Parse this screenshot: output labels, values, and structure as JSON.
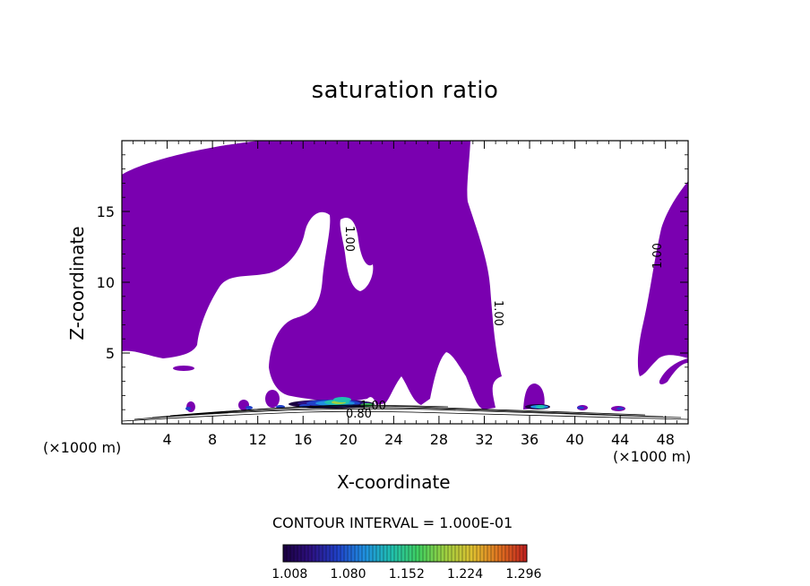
{
  "chart_data": {
    "type": "contour",
    "title": "saturation ratio",
    "xlabel": "X-coordinate",
    "ylabel": "Z-coordinate",
    "x_unit_label": "(×1000 m)",
    "x_ticks": [
      4,
      8,
      12,
      16,
      20,
      24,
      28,
      32,
      36,
      40,
      44,
      48
    ],
    "y_ticks": [
      5,
      10,
      15
    ],
    "xlim": [
      0,
      50
    ],
    "ylim": [
      0,
      20
    ],
    "contour_interval_label": "CONTOUR INTERVAL = 1.000E-01",
    "contour_labels": [
      "1.00",
      "1.00",
      "1.00",
      "0.80",
      "1.00"
    ],
    "fill_color": "#7a00b0",
    "colorbar": {
      "ticks": [
        "1.008",
        "1.080",
        "1.152",
        "1.224",
        "1.296"
      ],
      "range": [
        1.0,
        1.3
      ],
      "colors": [
        "#1a0040",
        "#2d1080",
        "#2040c8",
        "#2090e0",
        "#20c0b0",
        "#40d060",
        "#a0d040",
        "#e0c030",
        "#e07020",
        "#c02020"
      ]
    },
    "supersaturated_regions": [
      {
        "x_range": [
          0.3,
          17.5
        ],
        "z_range": [
          4.0,
          20.0
        ]
      },
      {
        "x_range": [
          13.5,
          33.0
        ],
        "z_range": [
          0.5,
          20.0
        ]
      },
      {
        "x_range": [
          45.0,
          50.0
        ],
        "z_range": [
          2.8,
          17.0
        ]
      },
      {
        "x_range": [
          35.0,
          37.5
        ],
        "z_range": [
          0.5,
          2.8
        ]
      }
    ]
  }
}
